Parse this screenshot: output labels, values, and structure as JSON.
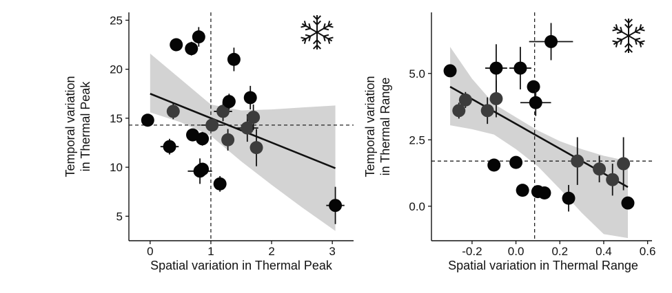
{
  "chart_data": [
    {
      "type": "scatter",
      "xlabel": "Spatial variation in Thermal Peak",
      "ylabel": [
        "Temporal variation",
        "in Thermal Peak"
      ],
      "xlim": [
        -0.35,
        3.35
      ],
      "ylim": [
        2.5,
        25.8
      ],
      "xticks": [
        0,
        1,
        2,
        3
      ],
      "yticks": [
        5,
        10,
        15,
        20,
        25
      ],
      "xtick_labels": [
        "0",
        "1",
        "2",
        "3"
      ],
      "ytick_labels": [
        "5",
        "10",
        "15",
        "20",
        "25"
      ],
      "vline": 1.0,
      "hline": 14.3,
      "icon": "snowflake-icon",
      "fit": {
        "x": [
          0,
          3.05
        ],
        "y": [
          17.5,
          9.9
        ]
      },
      "ci": [
        {
          "x": 0.0,
          "lo": 15.6,
          "hi": 21.6
        },
        {
          "x": 0.5,
          "lo": 14.6,
          "hi": 19.0
        },
        {
          "x": 1.0,
          "lo": 13.2,
          "hi": 16.4
        },
        {
          "x": 1.5,
          "lo": 10.6,
          "hi": 15.8
        },
        {
          "x": 2.0,
          "lo": 8.2,
          "hi": 15.9
        },
        {
          "x": 2.5,
          "lo": 5.9,
          "hi": 16.1
        },
        {
          "x": 3.05,
          "lo": 3.5,
          "hi": 16.3
        }
      ],
      "points": [
        {
          "x": -0.04,
          "y": 14.8,
          "xerr": 0.0,
          "yerr": 0.0,
          "shade": "dark"
        },
        {
          "x": 0.32,
          "y": 12.1,
          "xerr": 0.15,
          "yerr": 0.8,
          "shade": "dark"
        },
        {
          "x": 0.38,
          "y": 15.7,
          "xerr": 0.0,
          "yerr": 0.8,
          "shade": "grey"
        },
        {
          "x": 0.43,
          "y": 22.5,
          "xerr": 0.0,
          "yerr": 0.0,
          "shade": "dark"
        },
        {
          "x": 0.68,
          "y": 22.1,
          "xerr": 0.0,
          "yerr": 0.7,
          "shade": "dark"
        },
        {
          "x": 0.7,
          "y": 13.3,
          "xerr": 0.1,
          "yerr": 0.0,
          "shade": "dark"
        },
        {
          "x": 0.8,
          "y": 23.3,
          "xerr": 0.0,
          "yerr": 1.0,
          "shade": "dark"
        },
        {
          "x": 0.86,
          "y": 12.9,
          "xerr": 0.0,
          "yerr": 0.7,
          "shade": "dark"
        },
        {
          "x": 0.82,
          "y": 9.6,
          "xerr": 0.2,
          "yerr": 1.3,
          "shade": "dark"
        },
        {
          "x": 0.86,
          "y": 9.8,
          "xerr": 0.0,
          "yerr": 0.0,
          "shade": "dark"
        },
        {
          "x": 1.02,
          "y": 14.3,
          "xerr": 0.18,
          "yerr": 0.0,
          "shade": "grey"
        },
        {
          "x": 1.15,
          "y": 8.3,
          "xerr": 0.0,
          "yerr": 0.8,
          "shade": "dark"
        },
        {
          "x": 1.2,
          "y": 15.7,
          "xerr": 0.15,
          "yerr": 1.0,
          "shade": "grey"
        },
        {
          "x": 1.3,
          "y": 16.7,
          "xerr": 0.0,
          "yerr": 0.8,
          "shade": "dark"
        },
        {
          "x": 1.28,
          "y": 12.8,
          "xerr": 0.0,
          "yerr": 1.1,
          "shade": "grey"
        },
        {
          "x": 1.38,
          "y": 21.0,
          "xerr": 0.0,
          "yerr": 1.2,
          "shade": "dark"
        },
        {
          "x": 1.6,
          "y": 14.0,
          "xerr": 0.18,
          "yerr": 1.4,
          "shade": "grey"
        },
        {
          "x": 1.65,
          "y": 17.1,
          "xerr": 0.0,
          "yerr": 1.2,
          "shade": "dark"
        },
        {
          "x": 1.7,
          "y": 15.1,
          "xerr": 0.0,
          "yerr": 1.3,
          "shade": "grey"
        },
        {
          "x": 1.75,
          "y": 12.0,
          "xerr": 0.0,
          "yerr": 1.9,
          "shade": "grey"
        },
        {
          "x": 3.05,
          "y": 6.1,
          "xerr": 0.15,
          "yerr": 1.9,
          "shade": "dark"
        }
      ]
    },
    {
      "type": "scatter",
      "xlabel": "Spatial variation in Thermal Range",
      "ylabel": [
        "Temporal variation",
        "in Thermal Range"
      ],
      "xlim": [
        -0.385,
        0.62
      ],
      "ylim": [
        -1.3,
        7.3
      ],
      "xticks": [
        -0.2,
        0.0,
        0.2,
        0.4,
        0.6
      ],
      "yticks": [
        0.0,
        2.5,
        5.0
      ],
      "xtick_labels": [
        "-0.2",
        "0.0",
        "0.2",
        "0.4",
        "0.6"
      ],
      "ytick_labels": [
        "0.0",
        "2.5",
        "5.0"
      ],
      "vline": 0.085,
      "hline": 1.7,
      "icon": "snowflake-icon",
      "fit": {
        "x": [
          -0.3,
          0.51
        ],
        "y": [
          4.5,
          0.72
        ]
      },
      "ci": [
        {
          "x": -0.3,
          "lo": 3.05,
          "hi": 6.0
        },
        {
          "x": -0.2,
          "lo": 2.9,
          "hi": 4.8
        },
        {
          "x": -0.1,
          "lo": 2.7,
          "hi": 3.85
        },
        {
          "x": 0.0,
          "lo": 2.15,
          "hi": 3.35
        },
        {
          "x": 0.1,
          "lo": 1.5,
          "hi": 2.85
        },
        {
          "x": 0.2,
          "lo": 0.65,
          "hi": 2.45
        },
        {
          "x": 0.3,
          "lo": -0.25,
          "hi": 2.15
        },
        {
          "x": 0.4,
          "lo": -1.05,
          "hi": 1.9
        },
        {
          "x": 0.51,
          "lo": -1.2,
          "hi": 1.7
        }
      ],
      "points": [
        {
          "x": -0.3,
          "y": 5.1,
          "xerr": 0.0,
          "yerr": 0.0,
          "shade": "dark"
        },
        {
          "x": -0.26,
          "y": 3.6,
          "xerr": 0.0,
          "yerr": 0.3,
          "shade": "grey"
        },
        {
          "x": -0.23,
          "y": 4.0,
          "xerr": 0.0,
          "yerr": 0.3,
          "shade": "grey"
        },
        {
          "x": -0.13,
          "y": 3.6,
          "xerr": 0.0,
          "yerr": 0.5,
          "shade": "grey"
        },
        {
          "x": -0.09,
          "y": 4.05,
          "xerr": 0.0,
          "yerr": 0.7,
          "shade": "grey"
        },
        {
          "x": -0.09,
          "y": 5.2,
          "xerr": 0.05,
          "yerr": 0.9,
          "shade": "dark"
        },
        {
          "x": -0.1,
          "y": 1.55,
          "xerr": 0.0,
          "yerr": 0.0,
          "shade": "dark"
        },
        {
          "x": 0.02,
          "y": 5.2,
          "xerr": 0.05,
          "yerr": 0.8,
          "shade": "dark"
        },
        {
          "x": 0.0,
          "y": 1.65,
          "xerr": 0.0,
          "yerr": 0.0,
          "shade": "dark"
        },
        {
          "x": 0.03,
          "y": 0.6,
          "xerr": 0.0,
          "yerr": 0.0,
          "shade": "dark"
        },
        {
          "x": 0.08,
          "y": 4.5,
          "xerr": 0.0,
          "yerr": 0.0,
          "shade": "dark"
        },
        {
          "x": 0.09,
          "y": 3.9,
          "xerr": 0.07,
          "yerr": 0.5,
          "shade": "dark"
        },
        {
          "x": 0.1,
          "y": 0.55,
          "xerr": 0.0,
          "yerr": 0.0,
          "shade": "dark"
        },
        {
          "x": 0.13,
          "y": 0.5,
          "xerr": 0.0,
          "yerr": 0.0,
          "shade": "dark"
        },
        {
          "x": 0.16,
          "y": 6.2,
          "xerr": 0.1,
          "yerr": 0.7,
          "shade": "dark"
        },
        {
          "x": 0.24,
          "y": 0.3,
          "xerr": 0.0,
          "yerr": 0.5,
          "shade": "dark"
        },
        {
          "x": 0.28,
          "y": 1.7,
          "xerr": 0.0,
          "yerr": 0.9,
          "shade": "grey"
        },
        {
          "x": 0.38,
          "y": 1.4,
          "xerr": 0.0,
          "yerr": 0.5,
          "shade": "grey"
        },
        {
          "x": 0.44,
          "y": 1.0,
          "xerr": 0.0,
          "yerr": 0.6,
          "shade": "grey"
        },
        {
          "x": 0.49,
          "y": 1.6,
          "xerr": 0.0,
          "yerr": 1.0,
          "shade": "grey"
        },
        {
          "x": 0.51,
          "y": 0.12,
          "xerr": 0.0,
          "yerr": 0.0,
          "shade": "dark"
        }
      ]
    }
  ]
}
